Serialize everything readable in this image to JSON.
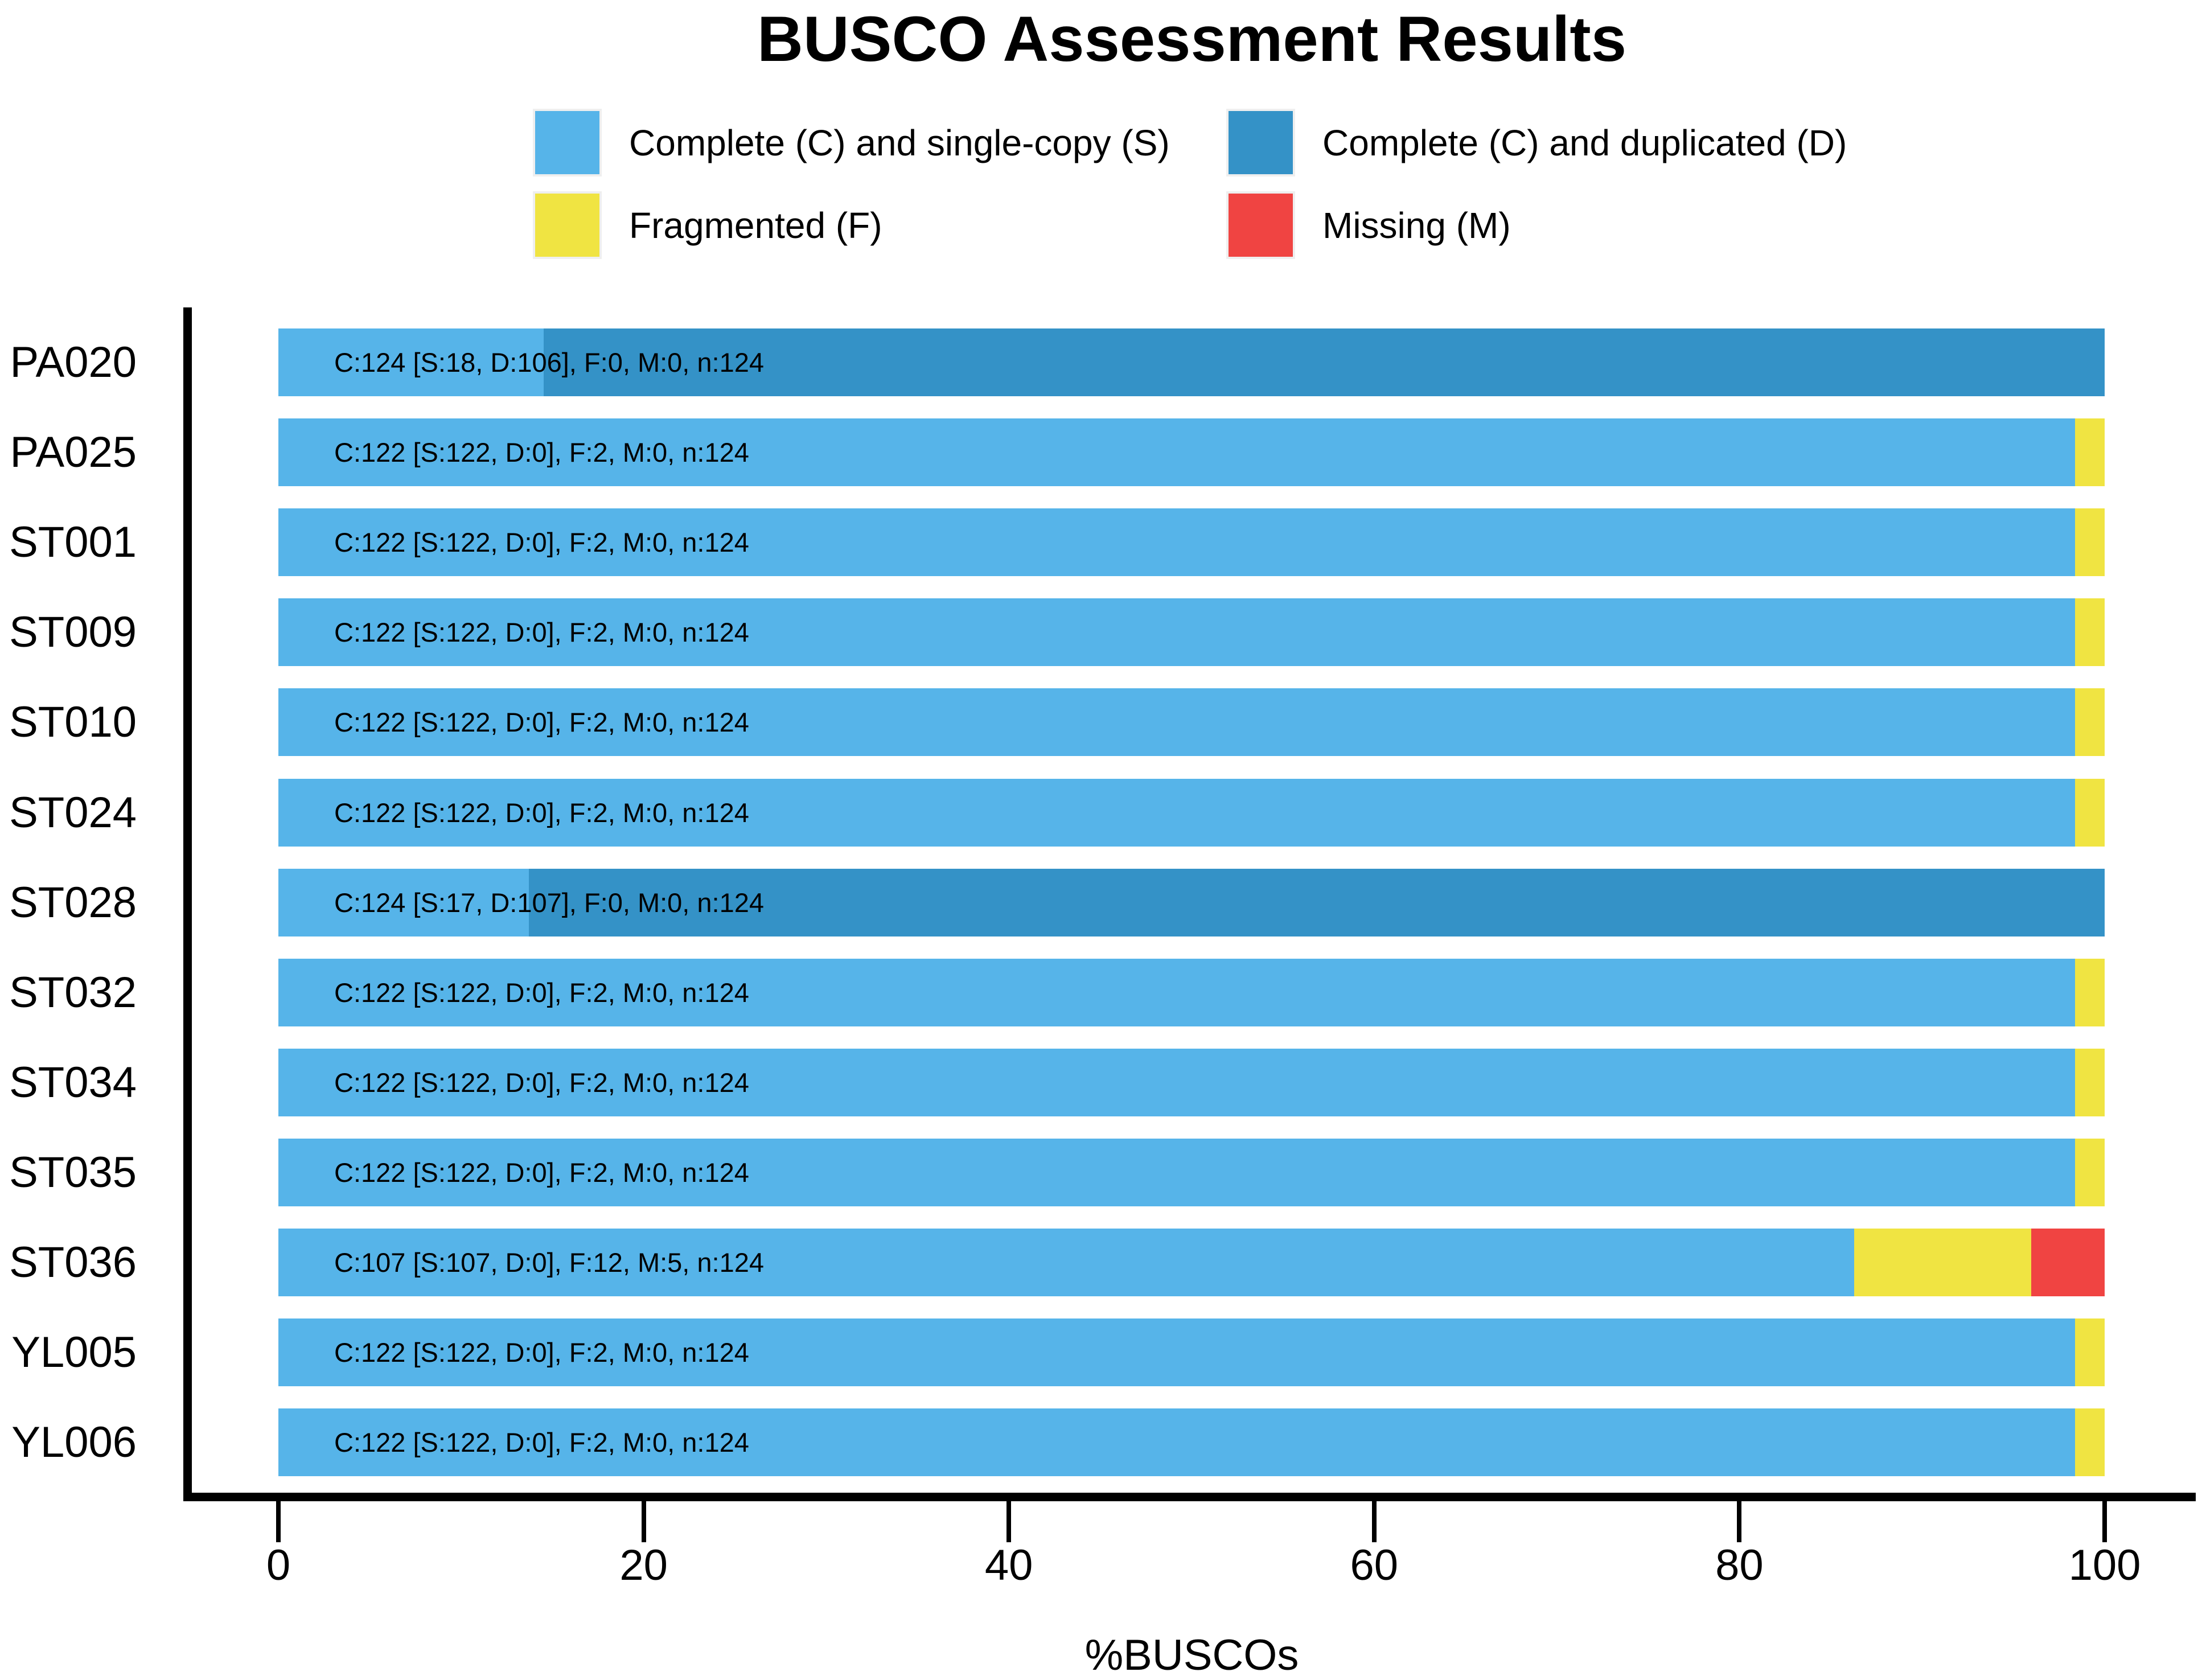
{
  "title": "BUSCO Assessment Results",
  "xlabel": "%BUSCOs",
  "legend": [
    {
      "label": "Complete (C) and single-copy (S)",
      "color": "#56B4E9"
    },
    {
      "label": "Complete (C) and duplicated (D)",
      "color": "#3492C7"
    },
    {
      "label": "Fragmented (F)",
      "color": "#F0E442"
    },
    {
      "label": "Missing (M)",
      "color": "#F04442"
    }
  ],
  "chart_data": {
    "type": "bar",
    "orientation": "horizontal",
    "stacked": true,
    "title": "BUSCO Assessment Results",
    "xlabel": "%BUSCOs",
    "xlim": [
      0,
      100
    ],
    "xticks": [
      0,
      20,
      40,
      60,
      80,
      100
    ],
    "grid": false,
    "legend_position": "top",
    "n": 124,
    "categories": [
      "PA020",
      "PA025",
      "ST001",
      "ST009",
      "ST010",
      "ST024",
      "ST028",
      "ST032",
      "ST034",
      "ST035",
      "ST036",
      "YL005",
      "YL006"
    ],
    "series": [
      {
        "name": "Complete (C) and single-copy (S)",
        "key": "S",
        "color": "#56B4E9",
        "values": [
          18,
          122,
          122,
          122,
          122,
          122,
          17,
          122,
          122,
          122,
          107,
          122,
          122
        ]
      },
      {
        "name": "Complete (C) and duplicated (D)",
        "key": "D",
        "color": "#3492C7",
        "values": [
          106,
          0,
          0,
          0,
          0,
          0,
          107,
          0,
          0,
          0,
          0,
          0,
          0
        ]
      },
      {
        "name": "Fragmented (F)",
        "key": "F",
        "color": "#F0E442",
        "values": [
          0,
          2,
          2,
          2,
          2,
          2,
          0,
          2,
          2,
          2,
          12,
          2,
          2
        ]
      },
      {
        "name": "Missing (M)",
        "key": "M",
        "color": "#F04442",
        "values": [
          0,
          0,
          0,
          0,
          0,
          0,
          0,
          0,
          0,
          0,
          5,
          0,
          0
        ]
      }
    ],
    "bar_labels": [
      "C:124 [S:18, D:106], F:0, M:0, n:124",
      "C:122 [S:122, D:0], F:2, M:0, n:124",
      "C:122 [S:122, D:0], F:2, M:0, n:124",
      "C:122 [S:122, D:0], F:2, M:0, n:124",
      "C:122 [S:122, D:0], F:2, M:0, n:124",
      "C:122 [S:122, D:0], F:2, M:0, n:124",
      "C:124 [S:17, D:107], F:0, M:0, n:124",
      "C:122 [S:122, D:0], F:2, M:0, n:124",
      "C:122 [S:122, D:0], F:2, M:0, n:124",
      "C:122 [S:122, D:0], F:2, M:0, n:124",
      "C:107 [S:107, D:0], F:12, M:5, n:124",
      "C:122 [S:122, D:0], F:2, M:0, n:124",
      "C:122 [S:122, D:0], F:2, M:0, n:124"
    ]
  }
}
